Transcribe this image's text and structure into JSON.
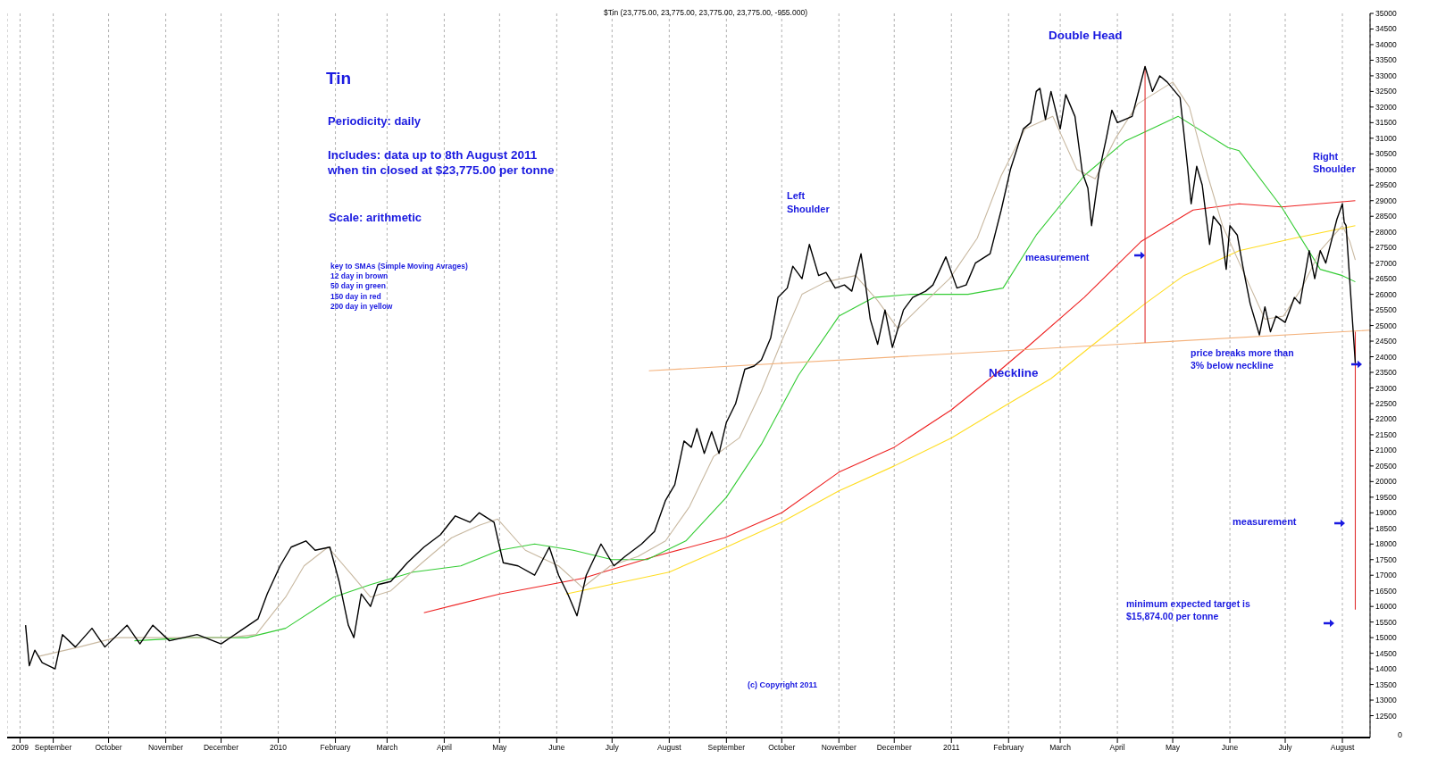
{
  "chart_data": {
    "type": "line",
    "title": "Tin",
    "subtitle": "$Tin (23,775.00, 23,775.00, 23,775.00, 23,775.00, -955.000)",
    "annotations": [
      "Periodicity: daily",
      "Includes: data up to 8th August 2011\nwhen tin closed at $23,775.00 per tonne",
      "Scale: arithmetic",
      "key to SMAs (Simple Moving Avrages)\n12 day in brown\n50 day in green\n150 day in red\n200 day in yellow",
      "Left\nShoulder",
      "Double Head",
      "measurement",
      "Right\nShoulder",
      "Neckline",
      "price breaks more than\n3%  below neckline",
      "measurement",
      "minimum expected target is\n$15,874.00 per tonne",
      "(c) Copyright 2011",
      "0"
    ],
    "xlim": [
      "2009-08-07",
      "2011-08-16"
    ],
    "xticks": [
      {
        "value": "2009-08-14",
        "label": "2009"
      },
      {
        "value": "2009-09-01",
        "label": "September"
      },
      {
        "value": "2009-10-01",
        "label": "October"
      },
      {
        "value": "2009-11-01",
        "label": "November"
      },
      {
        "value": "2009-12-01",
        "label": "December"
      },
      {
        "value": "2010-01-01",
        "label": "2010"
      },
      {
        "value": "2010-02-01",
        "label": "February"
      },
      {
        "value": "2010-03-01",
        "label": "March"
      },
      {
        "value": "2010-04-01",
        "label": "April"
      },
      {
        "value": "2010-05-01",
        "label": "May"
      },
      {
        "value": "2010-06-01",
        "label": "June"
      },
      {
        "value": "2010-07-01",
        "label": "July"
      },
      {
        "value": "2010-08-01",
        "label": "August"
      },
      {
        "value": "2010-09-01",
        "label": "September"
      },
      {
        "value": "2010-10-01",
        "label": "October"
      },
      {
        "value": "2010-11-01",
        "label": "November"
      },
      {
        "value": "2010-12-01",
        "label": "December"
      },
      {
        "value": "2011-01-01",
        "label": "2011"
      },
      {
        "value": "2011-02-01",
        "label": "February"
      },
      {
        "value": "2011-03-01",
        "label": "March"
      },
      {
        "value": "2011-04-01",
        "label": "April"
      },
      {
        "value": "2011-05-01",
        "label": "May"
      },
      {
        "value": "2011-06-01",
        "label": "June"
      },
      {
        "value": "2011-07-01",
        "label": "July"
      },
      {
        "value": "2011-08-01",
        "label": "August"
      }
    ],
    "ylim": [
      11800,
      35000
    ],
    "yticks": [
      12500,
      13000,
      13500,
      14000,
      14500,
      15000,
      15500,
      16000,
      16500,
      17000,
      17500,
      18000,
      18500,
      19000,
      19500,
      20000,
      20500,
      21000,
      21500,
      22000,
      22500,
      23000,
      23500,
      24000,
      24500,
      25000,
      25500,
      26000,
      26500,
      27000,
      27500,
      28000,
      28500,
      29000,
      29500,
      30000,
      30500,
      31000,
      31500,
      32000,
      32500,
      33000,
      33500,
      34000,
      34500,
      35000
    ],
    "grid": "x",
    "series": [
      {
        "color": "#ffdd22",
        "x": [
          "2010-06-06",
          "2010-08-01",
          "2010-09-01",
          "2010-10-01",
          "2010-11-01",
          "2010-12-01",
          "2011-01-01",
          "2011-02-01",
          "2011-02-24",
          "2011-03-17",
          "2011-04-16",
          "2011-05-07",
          "2011-06-06",
          "2011-07-06",
          "2011-08-08"
        ],
        "values": [
          16400,
          17100,
          17900,
          18700,
          19700,
          20500,
          21400,
          22500,
          23300,
          24300,
          25700,
          26600,
          27400,
          27800,
          28200
        ]
      },
      {
        "color": "#ee2222",
        "x": [
          "2010-03-21",
          "2010-05-01",
          "2010-06-15",
          "2010-07-24",
          "2010-08-31",
          "2010-10-01",
          "2010-11-01",
          "2010-12-01",
          "2011-01-01",
          "2011-01-22",
          "2011-02-11",
          "2011-03-14",
          "2011-04-14",
          "2011-05-12",
          "2011-06-06",
          "2011-06-29",
          "2011-08-08"
        ],
        "values": [
          15800,
          16400,
          16900,
          17600,
          18200,
          19000,
          20300,
          21100,
          22300,
          23300,
          24300,
          25900,
          27700,
          28700,
          28900,
          28800,
          29000
        ]
      },
      {
        "color": "#33cc33",
        "x": [
          "2009-10-15",
          "2009-11-15",
          "2009-12-15",
          "2010-01-05",
          "2010-01-31",
          "2010-02-20",
          "2010-03-15",
          "2010-04-10",
          "2010-05-01",
          "2010-05-20",
          "2010-06-10",
          "2010-07-01",
          "2010-07-20",
          "2010-08-10",
          "2010-09-01",
          "2010-09-20",
          "2010-10-10",
          "2010-11-01",
          "2010-11-20",
          "2010-12-10",
          "2011-01-10",
          "2011-01-29",
          "2011-02-16",
          "2011-03-14",
          "2011-04-05",
          "2011-05-04",
          "2011-05-31",
          "2011-06-06",
          "2011-06-29",
          "2011-07-20",
          "2011-08-01",
          "2011-08-08"
        ],
        "values": [
          14900,
          15000,
          15000,
          15300,
          16300,
          16700,
          17100,
          17300,
          17800,
          18000,
          17800,
          17500,
          17500,
          18100,
          19500,
          21200,
          23400,
          25300,
          25900,
          26000,
          26000,
          26200,
          27900,
          29800,
          30900,
          31700,
          30700,
          30600,
          28800,
          26800,
          26600,
          26400
        ]
      },
      {
        "color": "#c8b8a0",
        "x": [
          "2009-08-24",
          "2009-09-15",
          "2009-10-05",
          "2009-10-25",
          "2009-11-15",
          "2009-12-05",
          "2009-12-20",
          "2010-01-05",
          "2010-01-15",
          "2010-01-28",
          "2010-02-10",
          "2010-02-20",
          "2010-03-03",
          "2010-03-20",
          "2010-04-05",
          "2010-04-20",
          "2010-04-30",
          "2010-05-15",
          "2010-06-02",
          "2010-06-15",
          "2010-06-30",
          "2010-07-15",
          "2010-07-30",
          "2010-08-12",
          "2010-08-25",
          "2010-09-08",
          "2010-09-20",
          "2010-10-01",
          "2010-10-12",
          "2010-10-25",
          "2010-11-10",
          "2010-11-22",
          "2010-12-03",
          "2010-12-15",
          "2010-12-31",
          "2011-01-15",
          "2011-01-28",
          "2011-02-10",
          "2011-02-25",
          "2011-03-10",
          "2011-03-20",
          "2011-03-31",
          "2011-04-12",
          "2011-05-01",
          "2011-05-10",
          "2011-05-20",
          "2011-05-28",
          "2011-06-10",
          "2011-06-20",
          "2011-06-30",
          "2011-07-10",
          "2011-07-20",
          "2011-08-01",
          "2011-08-05",
          "2011-08-08"
        ],
        "values": [
          14400,
          14700,
          15000,
          15000,
          15000,
          15000,
          15100,
          16300,
          17300,
          17900,
          17000,
          16300,
          16500,
          17400,
          18200,
          18600,
          18800,
          17800,
          17300,
          16600,
          17300,
          17600,
          18100,
          19200,
          20800,
          21400,
          22900,
          24500,
          26000,
          26400,
          26600,
          25800,
          24900,
          25600,
          26500,
          27800,
          29800,
          31300,
          31700,
          30000,
          29700,
          31000,
          32100,
          32800,
          32000,
          29800,
          28200,
          26500,
          25200,
          25300,
          26200,
          27400,
          28200,
          27700,
          27100
        ]
      },
      {
        "color": "#f4b27c",
        "x": [
          "2010-07-21",
          "2011-08-16"
        ],
        "values": [
          23550,
          24850
        ]
      },
      {
        "color": "#e03030",
        "x": [
          "2011-04-16",
          "2011-04-16"
        ],
        "values": [
          33300,
          24450
        ]
      },
      {
        "color": "#e03030",
        "x": [
          "2011-08-08",
          "2011-08-08"
        ],
        "values": [
          24800,
          15900
        ]
      },
      {
        "color": "#000000",
        "x": [
          "2009-08-17",
          "2009-08-19",
          "2009-08-22",
          "2009-08-26",
          "2009-09-02",
          "2009-09-06",
          "2009-09-13",
          "2009-09-22",
          "2009-09-29",
          "2009-10-11",
          "2009-10-18",
          "2009-10-25",
          "2009-11-03",
          "2009-11-18",
          "2009-12-01",
          "2009-12-11",
          "2009-12-21",
          "2009-12-26",
          "2010-01-02",
          "2010-01-08",
          "2010-01-16",
          "2010-01-21",
          "2010-01-29",
          "2010-02-03",
          "2010-02-08",
          "2010-02-11",
          "2010-02-15",
          "2010-02-20",
          "2010-02-24",
          "2010-03-03",
          "2010-03-12",
          "2010-03-21",
          "2010-03-30",
          "2010-04-07",
          "2010-04-15",
          "2010-04-20",
          "2010-04-28",
          "2010-05-03",
          "2010-05-11",
          "2010-05-20",
          "2010-05-28",
          "2010-06-02",
          "2010-06-07",
          "2010-06-12",
          "2010-06-17",
          "2010-06-25",
          "2010-07-02",
          "2010-07-08",
          "2010-07-17",
          "2010-07-24",
          "2010-07-30",
          "2010-08-04",
          "2010-08-09",
          "2010-08-13",
          "2010-08-16",
          "2010-08-20",
          "2010-08-24",
          "2010-08-28",
          "2010-09-01",
          "2010-09-06",
          "2010-09-11",
          "2010-09-16",
          "2010-09-20",
          "2010-09-25",
          "2010-09-29",
          "2010-10-04",
          "2010-10-07",
          "2010-10-12",
          "2010-10-16",
          "2010-10-21",
          "2010-10-25",
          "2010-10-30",
          "2010-11-04",
          "2010-11-08",
          "2010-11-13",
          "2010-11-15",
          "2010-11-18",
          "2010-11-22",
          "2010-11-26",
          "2010-11-30",
          "2010-12-06",
          "2010-12-11",
          "2010-12-18",
          "2010-12-22",
          "2010-12-29",
          "2011-01-04",
          "2011-01-09",
          "2011-01-14",
          "2011-01-22",
          "2011-01-28",
          "2011-02-02",
          "2011-02-09",
          "2011-02-13",
          "2011-02-16",
          "2011-02-18",
          "2011-02-21",
          "2011-02-24",
          "2011-03-01",
          "2011-03-04",
          "2011-03-09",
          "2011-03-13",
          "2011-03-16",
          "2011-03-18",
          "2011-03-22",
          "2011-03-26",
          "2011-03-29",
          "2011-04-01",
          "2011-04-09",
          "2011-04-16",
          "2011-04-20",
          "2011-04-24",
          "2011-04-28",
          "2011-05-05",
          "2011-05-09",
          "2011-05-11",
          "2011-05-14",
          "2011-05-17",
          "2011-05-21",
          "2011-05-23",
          "2011-05-27",
          "2011-05-30",
          "2011-06-01",
          "2011-06-05",
          "2011-06-08",
          "2011-06-12",
          "2011-06-17",
          "2011-06-20",
          "2011-06-23",
          "2011-06-26",
          "2011-07-01",
          "2011-07-06",
          "2011-07-09",
          "2011-07-14",
          "2011-07-17",
          "2011-07-20",
          "2011-07-23",
          "2011-07-29",
          "2011-08-01",
          "2011-08-02",
          "2011-08-03",
          "2011-08-08"
        ],
        "values": [
          15400,
          14100,
          14600,
          14200,
          14000,
          15100,
          14700,
          15300,
          14700,
          15400,
          14800,
          15400,
          14900,
          15100,
          14800,
          15200,
          15600,
          16400,
          17300,
          17900,
          18100,
          17800,
          17900,
          16800,
          15400,
          15000,
          16400,
          16000,
          16700,
          16800,
          17400,
          17900,
          18300,
          18900,
          18700,
          19000,
          18700,
          17400,
          17300,
          17000,
          17900,
          17000,
          16400,
          15700,
          17000,
          18000,
          17300,
          17600,
          18000,
          18400,
          19400,
          19900,
          21300,
          21100,
          21700,
          20900,
          21600,
          20900,
          21900,
          22500,
          23600,
          23700,
          23900,
          24600,
          25900,
          26200,
          26900,
          26500,
          27600,
          26600,
          26700,
          26200,
          26300,
          26100,
          27300,
          26500,
          25200,
          24400,
          25500,
          24300,
          25500,
          25900,
          26100,
          26300,
          27200,
          26200,
          26300,
          27000,
          27300,
          28700,
          30000,
          31300,
          31500,
          32500,
          32600,
          31600,
          32500,
          31300,
          32400,
          31700,
          29900,
          29400,
          28200,
          29900,
          31000,
          31900,
          31500,
          31700,
          33300,
          32500,
          33000,
          32800,
          32300,
          30100,
          28900,
          30100,
          29500,
          27600,
          28500,
          28200,
          26800,
          28200,
          27900,
          26900,
          25700,
          24700,
          25600,
          24800,
          25300,
          25100,
          25900,
          25700,
          27400,
          26500,
          27400,
          27000,
          28400,
          28900,
          28300,
          28200,
          23800
        ]
      }
    ]
  }
}
